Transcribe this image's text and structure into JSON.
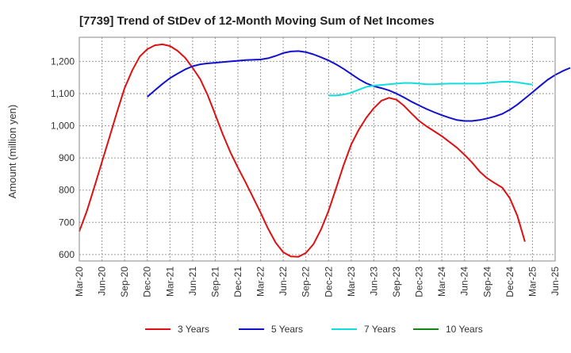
{
  "chart_data": {
    "type": "line",
    "title": "[7739]  Trend of StDev of 12-Month Moving Sum of Net Incomes",
    "xlabel": "",
    "ylabel": "Amount (million yen)",
    "ylim": [
      580,
      1275
    ],
    "yticks": [
      600,
      700,
      800,
      900,
      "1,000",
      "1,100",
      "1,200"
    ],
    "yticks_values": [
      600,
      700,
      800,
      900,
      1000,
      1100,
      1200
    ],
    "xticks": [
      "Mar-20",
      "Jun-20",
      "Sep-20",
      "Dec-20",
      "Mar-21",
      "Jun-21",
      "Sep-21",
      "Dec-21",
      "Mar-22",
      "Jun-22",
      "Sep-22",
      "Dec-22",
      "Mar-23",
      "Jun-23",
      "Sep-23",
      "Dec-23",
      "Mar-24",
      "Jun-24",
      "Sep-24",
      "Dec-24",
      "Mar-25",
      "Jun-25"
    ],
    "grid": true,
    "legend_position": "bottom",
    "series": [
      {
        "name": "3 Years",
        "color": "#dd1111",
        "start_index": 0,
        "values": [
          672,
          735,
          810,
          888,
          965,
          1043,
          1117,
          1172,
          1215,
          1238,
          1250,
          1253,
          1248,
          1233,
          1212,
          1180,
          1145,
          1095,
          1035,
          973,
          918,
          870,
          825,
          778,
          730,
          680,
          637,
          607,
          594,
          593,
          605,
          632,
          678,
          736,
          806,
          878,
          942,
          988,
          1025,
          1055,
          1078,
          1087,
          1081,
          1062,
          1038,
          1015,
          998,
          983,
          968,
          950,
          932,
          910,
          886,
          858,
          837,
          822,
          808,
          775,
          720,
          640
        ]
      },
      {
        "name": "5 Years",
        "color": "#1111cc",
        "start_index": 9,
        "values": [
          1090,
          1110,
          1130,
          1148,
          1162,
          1175,
          1185,
          1191,
          1194,
          1196,
          1198,
          1200,
          1202,
          1204,
          1205,
          1206,
          1210,
          1217,
          1226,
          1231,
          1232,
          1229,
          1222,
          1213,
          1203,
          1191,
          1177,
          1161,
          1145,
          1132,
          1123,
          1117,
          1110,
          1100,
          1088,
          1075,
          1063,
          1052,
          1042,
          1033,
          1025,
          1018,
          1015,
          1015,
          1018,
          1023,
          1029,
          1037,
          1050,
          1066,
          1085,
          1104,
          1124,
          1143,
          1158,
          1170,
          1180
        ]
      },
      {
        "name": "7 Years",
        "color": "#11dddd",
        "start_index": 33,
        "values": [
          1094,
          1094,
          1097,
          1103,
          1112,
          1121,
          1125,
          1127,
          1129,
          1131,
          1133,
          1133,
          1131,
          1129,
          1129,
          1130,
          1131,
          1131,
          1131,
          1131,
          1131,
          1133,
          1135,
          1137,
          1137,
          1135,
          1131,
          1128
        ]
      },
      {
        "name": "10 Years",
        "color": "#118811",
        "start_index": 0,
        "values": []
      }
    ]
  }
}
